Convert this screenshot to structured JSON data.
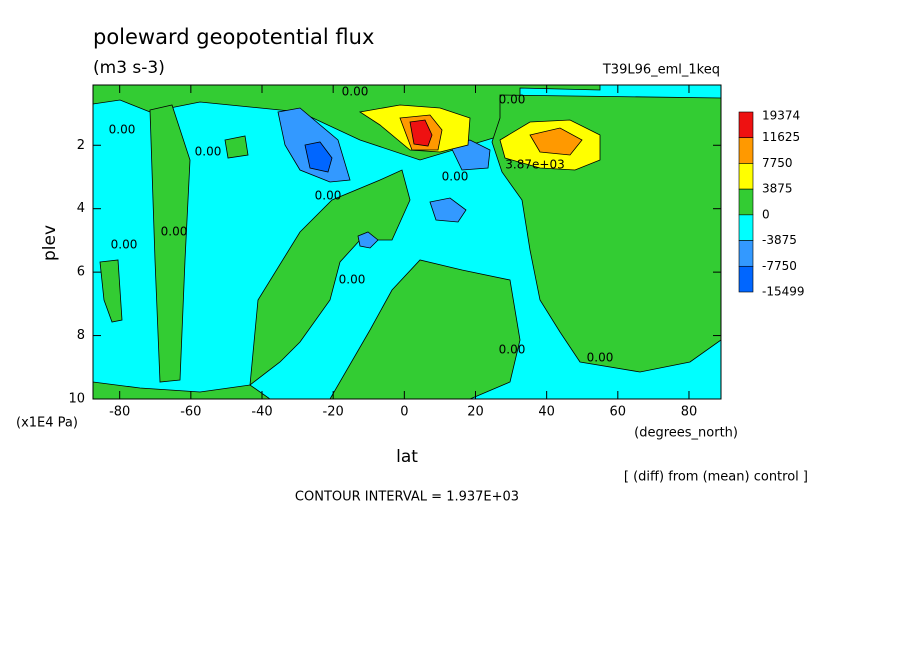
{
  "chart_data": {
    "type": "contour",
    "title": "poleward geopotential flux",
    "subtitle": "(m3 s-3)",
    "dataset": "T39L96_eml_1keq",
    "x_label": "lat",
    "x_units": "(degrees_north)",
    "y_label": "plev",
    "y_units": "(x1E4 Pa)",
    "note": "[ (diff) from (mean) control ]",
    "contour_interval": "CONTOUR INTERVAL = 1.937E+03",
    "xlim": [
      -87.5,
      89
    ],
    "xticks": [
      -80,
      -60,
      -40,
      -20,
      0,
      20,
      40,
      60,
      80
    ],
    "ylim": [
      10,
      0.1
    ],
    "yticks": [
      2,
      4,
      6,
      8,
      10
    ],
    "levels": [
      19374,
      11625,
      7750,
      3875,
      0,
      -3875,
      -7750,
      -15499
    ],
    "colors": [
      "#ee1111",
      "#ff9900",
      "#ffff00",
      "#33cc33",
      "#00ffff",
      "#3399ff",
      "#0066ff"
    ],
    "contour_labels": [
      "0.00",
      "0.00",
      "0.00",
      "0.00",
      "0.00",
      "0.00",
      "0.00",
      "0.00",
      "0.00",
      "0.00",
      "0.00",
      "3.87e+03"
    ]
  }
}
